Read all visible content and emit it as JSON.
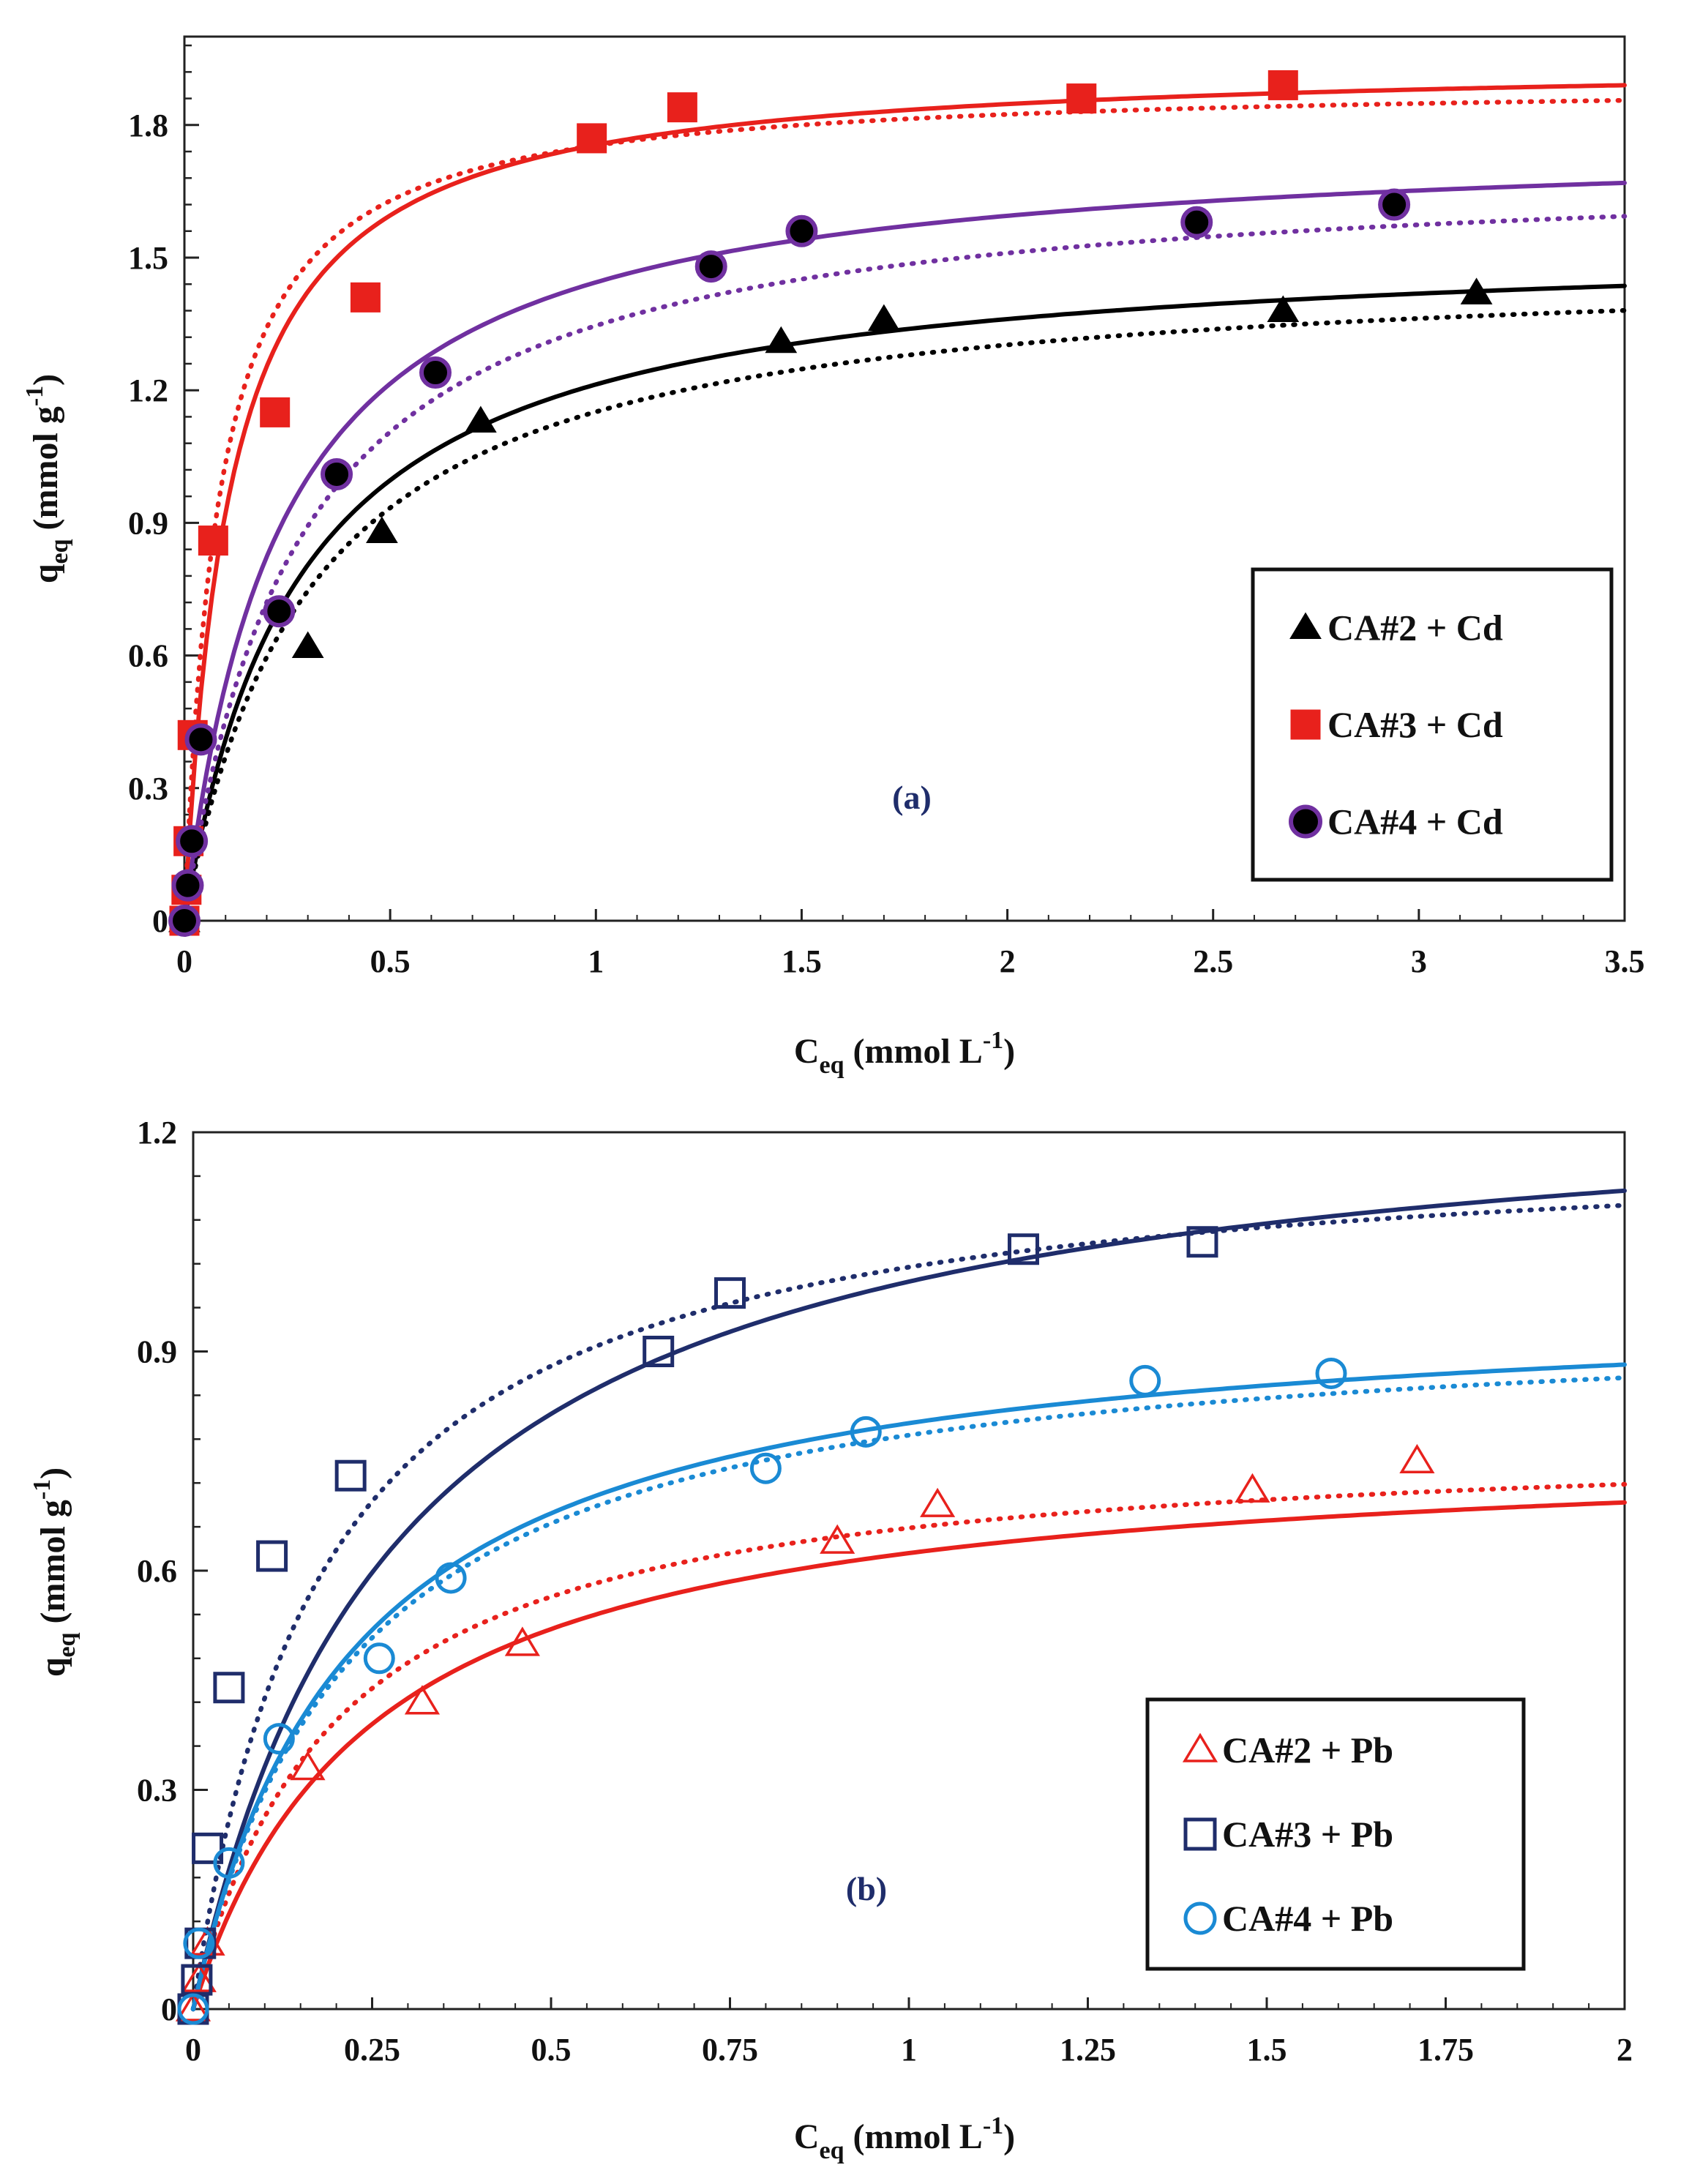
{
  "chart_data": [
    {
      "type": "scatter",
      "panel_label": "(a)",
      "xlabel": {
        "main": "C",
        "sub": "eq",
        "rest": " (mmol L",
        "sup": "-1",
        "end": ")"
      },
      "ylabel": {
        "main": "q",
        "sub": "eq",
        "rest": " (mmol  g",
        "sup": "-1",
        "end": ")"
      },
      "xlim": [
        0,
        3.5
      ],
      "ylim": [
        0,
        2.0
      ],
      "xticks": [
        0,
        0.5,
        1,
        1.5,
        2,
        2.5,
        3,
        3.5
      ],
      "xtick_labels": [
        "0",
        "0.5",
        "1",
        "1.5",
        "2",
        "2.5",
        "3",
        "3.5"
      ],
      "yticks": [
        0,
        0.3,
        0.6,
        0.9,
        1.2,
        1.5,
        1.8
      ],
      "ytick_labels": [
        "0",
        "0.3",
        "0.6",
        "0.9",
        "1.2",
        "1.5",
        "1.8"
      ],
      "legend_position": "bottom-right",
      "series": [
        {
          "name": "CA#2 + Cd",
          "marker": "triangle-filled",
          "color": "#000000",
          "x": [
            0,
            0.3,
            0.48,
            0.72,
            1.45,
            1.7,
            2.67,
            3.14
          ],
          "y": [
            0,
            0.62,
            0.88,
            1.13,
            1.31,
            1.36,
            1.38,
            1.42
          ],
          "fit_solid": {
            "qmax": 1.55,
            "K": 3.6
          },
          "fit_dotted": {
            "qmax": 1.5,
            "K": 3.3
          }
        },
        {
          "name": "CA#3 + Cd",
          "marker": "square-filled",
          "color": "#e8211c",
          "x": [
            0,
            0.005,
            0.01,
            0.02,
            0.07,
            0.22,
            0.44,
            0.99,
            1.21,
            2.18,
            2.67
          ],
          "y": [
            0,
            0.07,
            0.18,
            0.42,
            0.86,
            1.15,
            1.41,
            1.77,
            1.84,
            1.86,
            1.89
          ],
          "fit_solid": {
            "qmax": 1.95,
            "K": 9.0
          },
          "fit_dotted": {
            "qmax": 1.9,
            "K": 12.0
          }
        },
        {
          "name": "CA#4 + Cd",
          "marker": "circle-filled-purple-edge",
          "color": "#7030a0",
          "x": [
            0,
            0.008,
            0.018,
            0.04,
            0.23,
            0.37,
            0.61,
            1.28,
            1.5,
            2.46,
            2.94
          ],
          "y": [
            0,
            0.08,
            0.18,
            0.41,
            0.7,
            1.01,
            1.24,
            1.48,
            1.56,
            1.58,
            1.62
          ],
          "fit_solid": {
            "qmax": 1.78,
            "K": 4.3
          },
          "fit_dotted": {
            "qmax": 1.72,
            "K": 3.6
          }
        }
      ]
    },
    {
      "type": "scatter",
      "panel_label": "(b)",
      "xlabel": {
        "main": "C",
        "sub": "eq",
        "rest": " (mmol L",
        "sup": "-1",
        "end": ")"
      },
      "ylabel": {
        "main": "q",
        "sub": "eq",
        "rest": " (mmol  g",
        "sup": "-1",
        "end": ")"
      },
      "xlim": [
        0,
        2.0
      ],
      "ylim": [
        0,
        1.2
      ],
      "xticks": [
        0,
        0.25,
        0.5,
        0.75,
        1,
        1.25,
        1.5,
        1.75,
        2
      ],
      "xtick_labels": [
        "0",
        "0.25",
        "0.5",
        "0.75",
        "1",
        "1.25",
        "1.5",
        "1.75",
        "2"
      ],
      "yticks": [
        0,
        0.3,
        0.6,
        0.9,
        1.2
      ],
      "ytick_labels": [
        "0",
        "0.3",
        "0.6",
        "0.9",
        "1.2"
      ],
      "legend_position": "bottom-right",
      "series": [
        {
          "name": "CA#2 + Pb",
          "marker": "triangle-open",
          "color": "#e8211c",
          "x": [
            0,
            0.008,
            0.02,
            0.16,
            0.32,
            0.46,
            0.9,
            1.04,
            1.48,
            1.71
          ],
          "y": [
            0,
            0.04,
            0.09,
            0.33,
            0.42,
            0.5,
            0.64,
            0.69,
            0.71,
            0.75
          ],
          "fit_solid": {
            "qmax": 0.78,
            "K": 4.0
          },
          "fit_dotted": {
            "qmax": 0.79,
            "K": 5.0
          }
        },
        {
          "name": "CA#3 + Pb",
          "marker": "square-open",
          "color": "#1f2d6b",
          "x": [
            0,
            0.005,
            0.01,
            0.02,
            0.05,
            0.11,
            0.22,
            0.65,
            0.75,
            1.16,
            1.41
          ],
          "y": [
            0,
            0.04,
            0.09,
            0.22,
            0.44,
            0.62,
            0.73,
            0.9,
            0.98,
            1.04,
            1.05
          ],
          "fit_solid": {
            "qmax": 1.28,
            "K": 3.5
          },
          "fit_dotted": {
            "qmax": 1.2,
            "K": 5.5
          }
        },
        {
          "name": "CA#4 + Pb",
          "marker": "circle-open",
          "color": "#1a8ad4",
          "x": [
            0,
            0.008,
            0.05,
            0.12,
            0.26,
            0.36,
            0.8,
            0.94,
            1.33,
            1.59
          ],
          "y": [
            0,
            0.09,
            0.2,
            0.37,
            0.48,
            0.59,
            0.74,
            0.79,
            0.86,
            0.87
          ],
          "fit_solid": {
            "qmax": 0.98,
            "K": 4.5
          },
          "fit_dotted": {
            "qmax": 0.96,
            "K": 4.5
          }
        }
      ]
    }
  ]
}
